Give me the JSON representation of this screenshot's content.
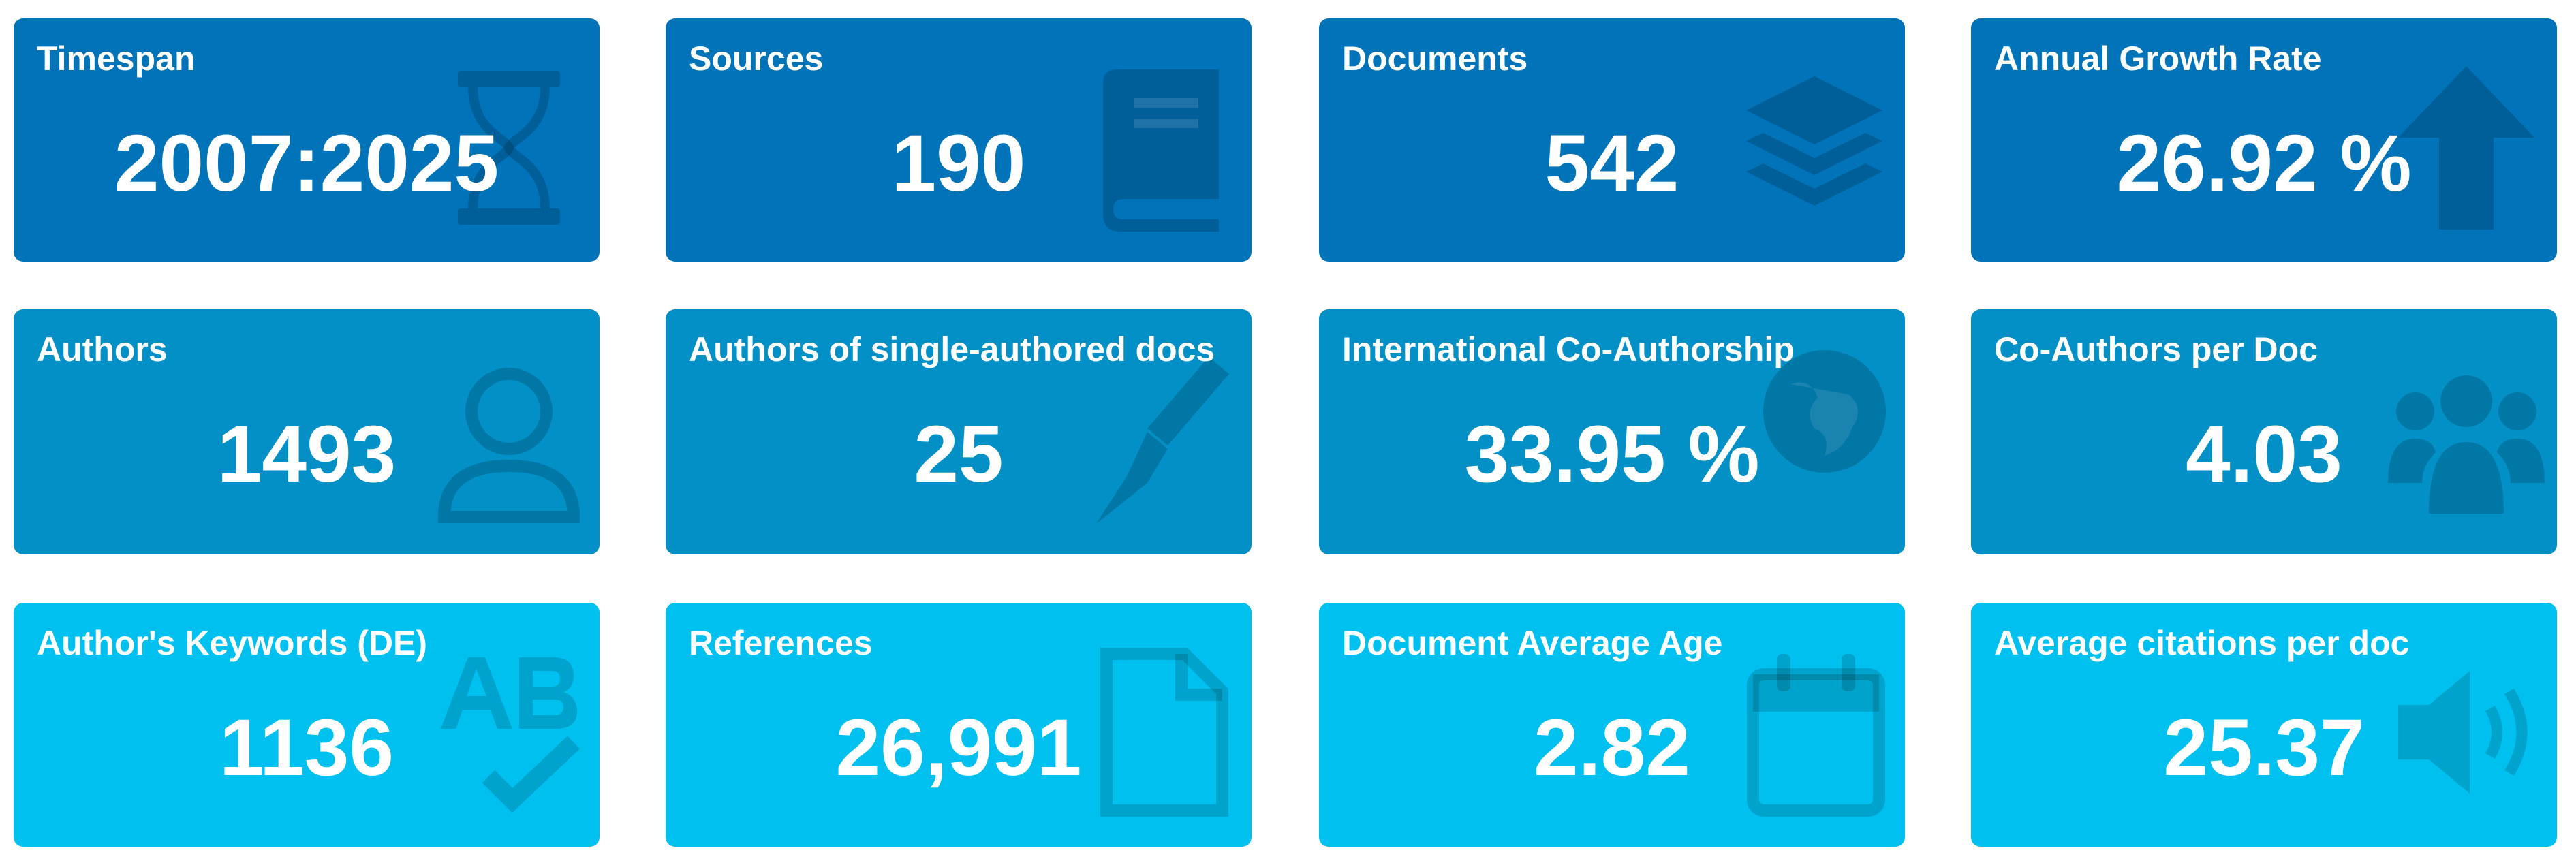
{
  "colors": {
    "row1_background": "#0073b9",
    "row2_background": "#0290c7",
    "row3_background": "#00c0ef",
    "text": "#ffffff"
  },
  "cards": [
    {
      "label": "Timespan",
      "value": "2007:2025",
      "icon": "hourglass-icon"
    },
    {
      "label": "Sources",
      "value": "190",
      "icon": "book-icon"
    },
    {
      "label": "Documents",
      "value": "542",
      "icon": "layers-icon"
    },
    {
      "label": "Annual Growth Rate",
      "value": "26.92 %",
      "icon": "arrow-up-icon"
    },
    {
      "label": "Authors",
      "value": "1493",
      "icon": "user-icon"
    },
    {
      "label": "Authors of single-authored docs",
      "value": "25",
      "icon": "pen-nib-icon"
    },
    {
      "label": "International Co-Authorship",
      "value": "33.95 %",
      "icon": "globe-icon"
    },
    {
      "label": "Co-Authors per Doc",
      "value": "4.03",
      "icon": "users-icon"
    },
    {
      "label": "Author's Keywords (DE)",
      "value": "1136",
      "icon": "spell-check-icon"
    },
    {
      "label": "References",
      "value": "26,991",
      "icon": "file-icon"
    },
    {
      "label": "Document Average Age",
      "value": "2.82",
      "icon": "calendar-icon"
    },
    {
      "label": "Average citations per doc",
      "value": "25.37",
      "icon": "volume-icon"
    }
  ]
}
